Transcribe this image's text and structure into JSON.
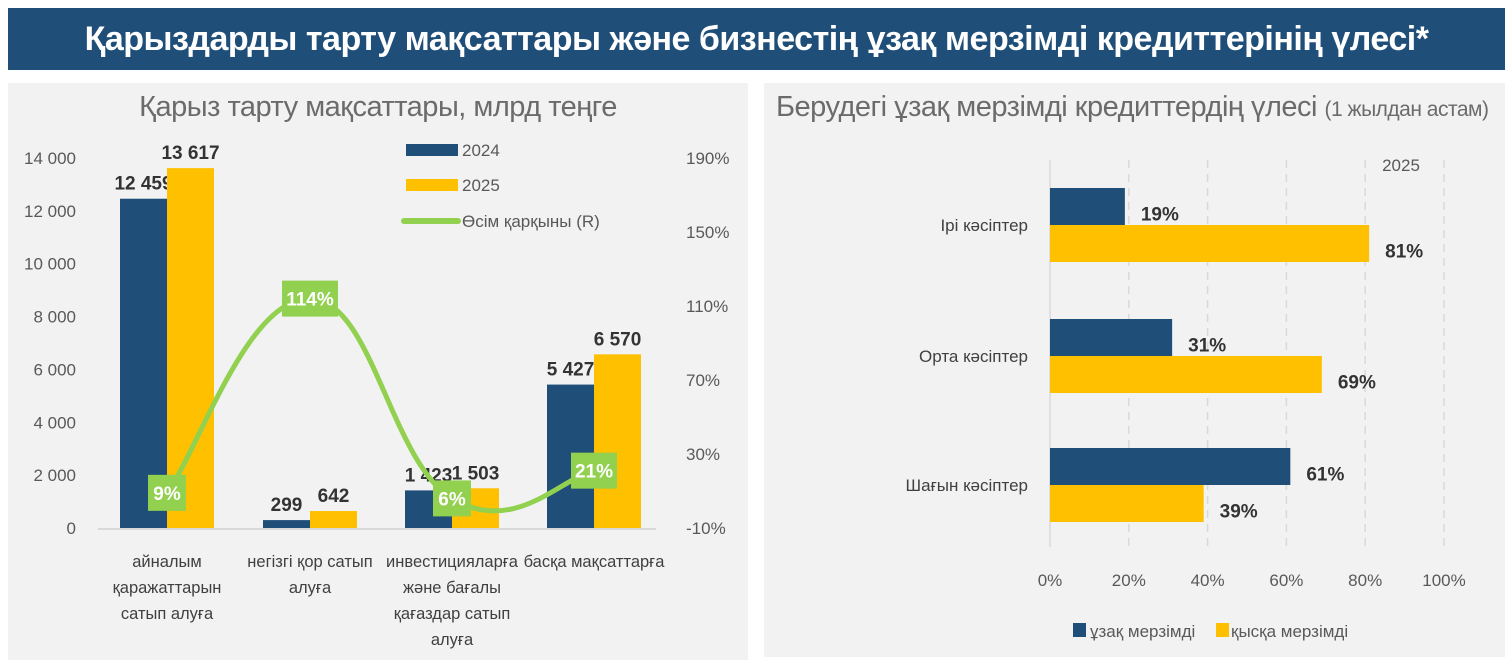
{
  "header": {
    "title": "Қарыздарды тарту мақсаттары және бизнестің ұзақ мерзімді кредиттерінің үлесі*"
  },
  "colors": {
    "header_bg": "#1f4e79",
    "panel_bg": "#f2f2f2",
    "series_2024": "#1f4e79",
    "series_2025": "#ffc000",
    "growth_line": "#92d050",
    "axis_text": "#595959",
    "label_text": "#333333"
  },
  "chart_data": [
    {
      "type": "bar",
      "title": "Қарыз тарту мақсаттары, млрд теңге",
      "categories": [
        [
          "айналым",
          "қаражаттарын",
          "сатып алуға"
        ],
        [
          "негізгі қор сатып",
          "алуға"
        ],
        [
          "инвестицияларға",
          "және бағалы",
          "қағаздар сатып",
          "алуға"
        ],
        [
          "басқа мақсаттарға"
        ]
      ],
      "series": [
        {
          "name": "2024",
          "values": [
            12459,
            299,
            1423,
            5427
          ],
          "labels": [
            "12 459",
            "299",
            "1 423",
            "5 427"
          ]
        },
        {
          "name": "2025",
          "values": [
            13617,
            642,
            1503,
            6570
          ],
          "labels": [
            "13 617",
            "642",
            "1 503",
            "6 570"
          ]
        }
      ],
      "line_series": {
        "name": "Өсім қарқыны (R)",
        "axis": "right",
        "values": [
          9,
          114,
          6,
          21
        ],
        "labels": [
          "9%",
          "114%",
          "6%",
          "21%"
        ]
      },
      "y_left": {
        "range": [
          0,
          14000
        ],
        "ticks": [
          0,
          2000,
          4000,
          6000,
          8000,
          10000,
          12000,
          14000
        ],
        "tick_labels": [
          "0",
          "2 000",
          "4 000",
          "6 000",
          "8 000",
          "10 000",
          "12 000",
          "14 000"
        ]
      },
      "y_right": {
        "range": [
          -10,
          190
        ],
        "ticks": [
          -10,
          30,
          70,
          110,
          150,
          190
        ],
        "tick_labels": [
          "-10%",
          "30%",
          "70%",
          "110%",
          "150%",
          "190%"
        ]
      },
      "legend": {
        "position": "top-right",
        "entries": [
          "2024",
          "2025",
          "Өсім қарқыны (R)"
        ]
      },
      "grid": false
    },
    {
      "type": "bar",
      "orientation": "horizontal",
      "title": "Берудегі ұзақ мерзімді кредиттердің үлесі",
      "subtitle": "(1 жылдан астам)",
      "annotation": "2025",
      "categories": [
        "Ірі кәсіптер",
        "Орта кәсіптер",
        "Шағын кәсіптер"
      ],
      "series": [
        {
          "name": "ұзақ мерзімді",
          "values": [
            19,
            31,
            61
          ],
          "labels": [
            "19%",
            "31%",
            "61%"
          ]
        },
        {
          "name": "қысқа мерзімді",
          "values": [
            81,
            69,
            39
          ],
          "labels": [
            "81%",
            "69%",
            "39%"
          ]
        }
      ],
      "x_axis": {
        "range": [
          0,
          100
        ],
        "ticks": [
          0,
          20,
          40,
          60,
          80,
          100
        ],
        "tick_labels": [
          "0%",
          "20%",
          "40%",
          "60%",
          "80%",
          "100%"
        ]
      },
      "legend": {
        "position": "bottom",
        "entries": [
          "ұзақ мерзімді",
          "қысқа мерзімді"
        ]
      },
      "grid": "vertical-dashed"
    }
  ]
}
